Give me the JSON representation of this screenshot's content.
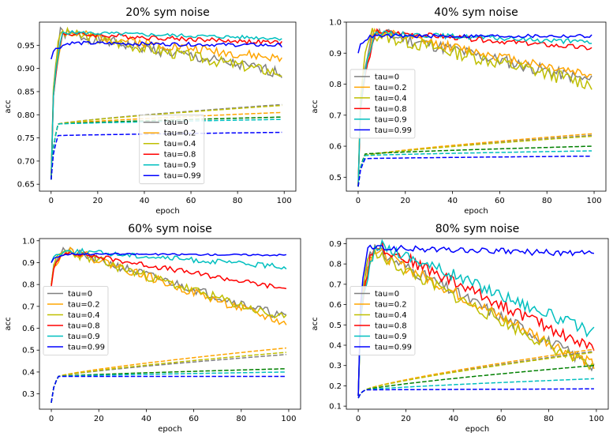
{
  "chart_data": [
    {
      "type": "line",
      "title": "20% sym noise",
      "xlabel": "epoch",
      "ylabel": "acc",
      "xlim": [
        -5,
        105
      ],
      "ylim": [
        0.635,
        1.0
      ],
      "xticks": [
        "0",
        "20",
        "40",
        "60",
        "80",
        "100"
      ],
      "yticks": [
        "0.65",
        "0.70",
        "0.75",
        "0.80",
        "0.85",
        "0.90",
        "0.95"
      ],
      "legend_position": "bottom-center",
      "series": [
        {
          "name": "tau=0",
          "color": "#808080",
          "kind": "solid",
          "start": 0.66,
          "peak": 0.977,
          "peak_epoch": 4,
          "end": 0.89,
          "noise": 0.012,
          "seed": 1
        },
        {
          "name": "tau=0.2",
          "color": "#ffa500",
          "kind": "solid",
          "start": 0.66,
          "peak": 0.977,
          "peak_epoch": 5,
          "end": 0.92,
          "noise": 0.01,
          "seed": 2
        },
        {
          "name": "tau=0.4",
          "color": "#bfbf00",
          "kind": "solid",
          "start": 0.66,
          "peak": 0.978,
          "peak_epoch": 4,
          "end": 0.89,
          "noise": 0.012,
          "seed": 3
        },
        {
          "name": "tau=0.8",
          "color": "#ff0000",
          "kind": "solid",
          "start": 0.66,
          "peak": 0.975,
          "peak_epoch": 5,
          "end": 0.955,
          "noise": 0.005,
          "seed": 4
        },
        {
          "name": "tau=0.9",
          "color": "#00bfbf",
          "kind": "solid",
          "start": 0.66,
          "peak": 0.978,
          "peak_epoch": 5,
          "end": 0.965,
          "noise": 0.004,
          "seed": 5
        },
        {
          "name": "tau=0.99",
          "color": "#0000ff",
          "kind": "solid",
          "start": 0.92,
          "peak": 0.955,
          "peak_epoch": 8,
          "end": 0.95,
          "noise": 0.004,
          "seed": 6
        },
        {
          "color": "#808080",
          "kind": "dashed",
          "start": 0.66,
          "knee": 0.78,
          "end": 0.822
        },
        {
          "color": "#ffa500",
          "kind": "dashed",
          "start": 0.66,
          "knee": 0.78,
          "end": 0.805
        },
        {
          "color": "#bfbf00",
          "kind": "dashed",
          "start": 0.66,
          "knee": 0.78,
          "end": 0.82
        },
        {
          "color": "#008000",
          "kind": "dashed",
          "start": 0.66,
          "knee": 0.78,
          "end": 0.795
        },
        {
          "color": "#00bfbf",
          "kind": "dashed",
          "start": 0.66,
          "knee": 0.78,
          "end": 0.79
        },
        {
          "color": "#0000ff",
          "kind": "dashed",
          "start": 0.66,
          "knee": 0.755,
          "end": 0.762
        }
      ]
    },
    {
      "type": "line",
      "title": "40% sym noise",
      "xlabel": "epoch",
      "ylabel": "acc",
      "xlim": [
        -5,
        105
      ],
      "ylim": [
        0.455,
        1.0
      ],
      "xticks": [
        "0",
        "20",
        "40",
        "60",
        "80",
        "100"
      ],
      "yticks": [
        "0.5",
        "0.6",
        "0.7",
        "0.8",
        "0.9",
        "1.0"
      ],
      "legend_position": "center-left",
      "series": [
        {
          "name": "tau=0",
          "color": "#808080",
          "kind": "solid",
          "start": 0.47,
          "peak": 0.97,
          "peak_epoch": 6,
          "end": 0.81,
          "noise": 0.02,
          "seed": 11
        },
        {
          "name": "tau=0.2",
          "color": "#ffa500",
          "kind": "solid",
          "start": 0.47,
          "peak": 0.97,
          "peak_epoch": 7,
          "end": 0.83,
          "noise": 0.015,
          "seed": 12
        },
        {
          "name": "tau=0.4",
          "color": "#bfbf00",
          "kind": "solid",
          "start": 0.47,
          "peak": 0.965,
          "peak_epoch": 5,
          "end": 0.8,
          "noise": 0.022,
          "seed": 13
        },
        {
          "name": "tau=0.8",
          "color": "#ff0000",
          "kind": "solid",
          "start": 0.47,
          "peak": 0.97,
          "peak_epoch": 8,
          "end": 0.915,
          "noise": 0.008,
          "seed": 14
        },
        {
          "name": "tau=0.9",
          "color": "#00bfbf",
          "kind": "solid",
          "start": 0.47,
          "peak": 0.965,
          "peak_epoch": 7,
          "end": 0.935,
          "noise": 0.008,
          "seed": 15
        },
        {
          "name": "tau=0.99",
          "color": "#0000ff",
          "kind": "solid",
          "start": 0.9,
          "peak": 0.955,
          "peak_epoch": 6,
          "end": 0.955,
          "noise": 0.006,
          "seed": 16
        },
        {
          "color": "#808080",
          "kind": "dashed",
          "start": 0.47,
          "knee": 0.57,
          "end": 0.635
        },
        {
          "color": "#ffa500",
          "kind": "dashed",
          "start": 0.47,
          "knee": 0.57,
          "end": 0.64
        },
        {
          "color": "#bfbf00",
          "kind": "dashed",
          "start": 0.47,
          "knee": 0.57,
          "end": 0.632
        },
        {
          "color": "#008000",
          "kind": "dashed",
          "start": 0.47,
          "knee": 0.575,
          "end": 0.6
        },
        {
          "color": "#00bfbf",
          "kind": "dashed",
          "start": 0.47,
          "knee": 0.57,
          "end": 0.585
        },
        {
          "color": "#0000ff",
          "kind": "dashed",
          "start": 0.47,
          "knee": 0.56,
          "end": 0.568
        }
      ]
    },
    {
      "type": "line",
      "title": "60% sym noise",
      "xlabel": "epoch",
      "ylabel": "acc",
      "xlim": [
        -5,
        105
      ],
      "ylim": [
        0.23,
        1.01
      ],
      "xticks": [
        "0",
        "20",
        "40",
        "60",
        "80",
        "100"
      ],
      "yticks": [
        "0.3",
        "0.4",
        "0.5",
        "0.6",
        "0.7",
        "0.8",
        "0.9",
        "1.0"
      ],
      "legend_position": "center-left",
      "series": [
        {
          "name": "tau=0",
          "color": "#808080",
          "kind": "solid",
          "start": 0.8,
          "peak": 0.96,
          "peak_epoch": 5,
          "end": 0.65,
          "noise": 0.02,
          "seed": 21
        },
        {
          "name": "tau=0.2",
          "color": "#ffa500",
          "kind": "solid",
          "start": 0.8,
          "peak": 0.96,
          "peak_epoch": 7,
          "end": 0.62,
          "noise": 0.02,
          "seed": 22
        },
        {
          "name": "tau=0.4",
          "color": "#bfbf00",
          "kind": "solid",
          "start": 0.8,
          "peak": 0.955,
          "peak_epoch": 6,
          "end": 0.64,
          "noise": 0.022,
          "seed": 23
        },
        {
          "name": "tau=0.8",
          "color": "#ff0000",
          "kind": "solid",
          "start": 0.79,
          "peak": 0.95,
          "peak_epoch": 7,
          "end": 0.78,
          "noise": 0.012,
          "seed": 24
        },
        {
          "name": "tau=0.9",
          "color": "#00bfbf",
          "kind": "solid",
          "start": 0.9,
          "peak": 0.955,
          "peak_epoch": 8,
          "end": 0.88,
          "noise": 0.012,
          "seed": 25
        },
        {
          "name": "tau=0.99",
          "color": "#0000ff",
          "kind": "solid",
          "start": 0.9,
          "peak": 0.94,
          "peak_epoch": 8,
          "end": 0.935,
          "noise": 0.004,
          "seed": 26
        },
        {
          "color": "#808080",
          "kind": "dashed",
          "start": 0.26,
          "knee": 0.38,
          "end": 0.48
        },
        {
          "color": "#ffa500",
          "kind": "dashed",
          "start": 0.26,
          "knee": 0.38,
          "end": 0.51
        },
        {
          "color": "#bfbf00",
          "kind": "dashed",
          "start": 0.26,
          "knee": 0.38,
          "end": 0.49
        },
        {
          "color": "#008000",
          "kind": "dashed",
          "start": 0.26,
          "knee": 0.38,
          "end": 0.415
        },
        {
          "color": "#00bfbf",
          "kind": "dashed",
          "start": 0.26,
          "knee": 0.38,
          "end": 0.4
        },
        {
          "color": "#0000ff",
          "kind": "dashed",
          "start": 0.26,
          "knee": 0.38,
          "end": 0.38
        }
      ]
    },
    {
      "type": "line",
      "title": "80% sym noise",
      "xlabel": "epoch",
      "ylabel": "acc",
      "xlim": [
        -5,
        105
      ],
      "ylim": [
        0.085,
        0.925
      ],
      "xticks": [
        "0",
        "20",
        "40",
        "60",
        "80",
        "100"
      ],
      "yticks": [
        "0.1",
        "0.2",
        "0.3",
        "0.4",
        "0.5",
        "0.6",
        "0.7",
        "0.8",
        "0.9"
      ],
      "legend_position": "center-left",
      "series": [
        {
          "name": "tau=0",
          "color": "#808080",
          "kind": "solid",
          "start": 0.15,
          "peak": 0.88,
          "peak_epoch": 5,
          "end": 0.3,
          "noise": 0.03,
          "seed": 31
        },
        {
          "name": "tau=0.2",
          "color": "#ffa500",
          "kind": "solid",
          "start": 0.15,
          "peak": 0.87,
          "peak_epoch": 6,
          "end": 0.3,
          "noise": 0.03,
          "seed": 32
        },
        {
          "name": "tau=0.4",
          "color": "#bfbf00",
          "kind": "solid",
          "start": 0.15,
          "peak": 0.86,
          "peak_epoch": 5,
          "end": 0.28,
          "noise": 0.03,
          "seed": 33
        },
        {
          "name": "tau=0.8",
          "color": "#ff0000",
          "kind": "solid",
          "start": 0.15,
          "peak": 0.9,
          "peak_epoch": 7,
          "end": 0.38,
          "noise": 0.03,
          "seed": 34
        },
        {
          "name": "tau=0.9",
          "color": "#00bfbf",
          "kind": "solid",
          "start": 0.15,
          "peak": 0.9,
          "peak_epoch": 8,
          "end": 0.46,
          "noise": 0.03,
          "seed": 35
        },
        {
          "name": "tau=0.99",
          "color": "#0000ff",
          "kind": "solid",
          "start": 0.15,
          "peak": 0.88,
          "peak_epoch": 4,
          "end": 0.85,
          "noise": 0.015,
          "seed": 36
        },
        {
          "color": "#808080",
          "kind": "dashed",
          "start": 0.14,
          "knee": 0.18,
          "end": 0.37
        },
        {
          "color": "#ffa500",
          "kind": "dashed",
          "start": 0.14,
          "knee": 0.18,
          "end": 0.38
        },
        {
          "color": "#bfbf00",
          "kind": "dashed",
          "start": 0.14,
          "knee": 0.18,
          "end": 0.365
        },
        {
          "color": "#008000",
          "kind": "dashed",
          "start": 0.14,
          "knee": 0.18,
          "end": 0.3
        },
        {
          "color": "#00bfbf",
          "kind": "dashed",
          "start": 0.14,
          "knee": 0.18,
          "end": 0.235
        },
        {
          "color": "#0000ff",
          "kind": "dashed",
          "start": 0.14,
          "knee": 0.18,
          "end": 0.185
        }
      ]
    }
  ]
}
